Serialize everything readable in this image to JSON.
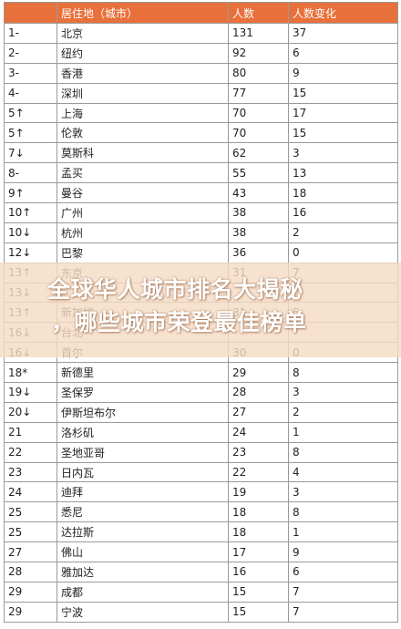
{
  "table": {
    "headers": [
      "",
      "居住地（城市）",
      "人数",
      "人数变化"
    ],
    "rows": [
      [
        "1-",
        "北京",
        "131",
        "37"
      ],
      [
        "2-",
        "纽约",
        "92",
        "6"
      ],
      [
        "3-",
        "香港",
        "80",
        "9"
      ],
      [
        "4-",
        "深圳",
        "77",
        "15"
      ],
      [
        "5↑",
        "上海",
        "70",
        "17"
      ],
      [
        "5↑",
        "伦敦",
        "70",
        "15"
      ],
      [
        "7↓",
        "莫斯科",
        "62",
        "3"
      ],
      [
        "8-",
        "孟买",
        "55",
        "13"
      ],
      [
        "9↑",
        "曼谷",
        "43",
        "18"
      ],
      [
        "10↑",
        "广州",
        "38",
        "16"
      ],
      [
        "10↓",
        "杭州",
        "38",
        "2"
      ],
      [
        "12↓",
        "巴黎",
        "36",
        "0"
      ],
      [
        "13↑",
        "东京",
        "31",
        "7"
      ],
      [
        "13↓",
        "",
        "",
        ""
      ],
      [
        "13↑",
        "新加坡",
        "31",
        "5"
      ],
      [
        "16↓",
        "台北",
        "",
        ""
      ],
      [
        "16↓",
        "首尔",
        "30",
        "0"
      ],
      [
        "18*",
        "新德里",
        "29",
        "8"
      ],
      [
        "19↓",
        "圣保罗",
        "28",
        "3"
      ],
      [
        "20↓",
        "伊斯坦布尔",
        "27",
        "2"
      ],
      [
        "21",
        "洛杉矶",
        "24",
        "1"
      ],
      [
        "22",
        "圣地亚哥",
        "23",
        "8"
      ],
      [
        "23",
        "日内瓦",
        "22",
        "4"
      ],
      [
        "24",
        "迪拜",
        "19",
        "3"
      ],
      [
        "25",
        "悉尼",
        "18",
        "8"
      ],
      [
        "25",
        "达拉斯",
        "18",
        "1"
      ],
      [
        "27",
        "佛山",
        "17",
        "9"
      ],
      [
        "28",
        "雅加达",
        "16",
        "6"
      ],
      [
        "29",
        "成都",
        "15",
        "7"
      ],
      [
        "29",
        "宁波",
        "15",
        "7"
      ]
    ]
  },
  "overlay": {
    "line1": "全球华人城市排名大揭秘",
    "line2": "，哪些城市荣登最佳榜单"
  }
}
